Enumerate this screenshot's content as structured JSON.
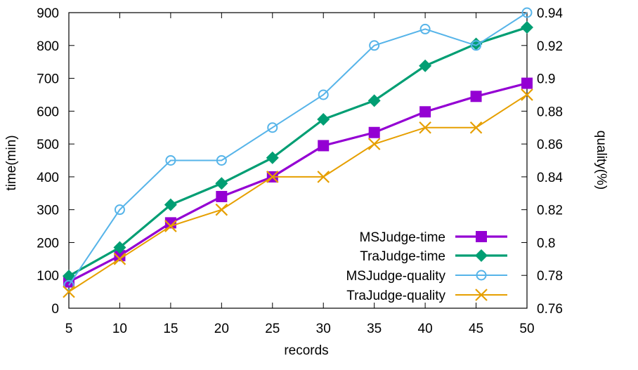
{
  "chart_data": {
    "type": "line",
    "x": [
      5,
      10,
      15,
      20,
      25,
      30,
      35,
      40,
      45,
      50
    ],
    "xlabel": "records",
    "ylabel": "time(min)",
    "y2label": "quality(%)",
    "xlim": [
      5,
      50
    ],
    "ylim": [
      0,
      900
    ],
    "y2lim": [
      0.76,
      0.94
    ],
    "xticks": [
      "5",
      "10",
      "15",
      "20",
      "25",
      "30",
      "35",
      "40",
      "45",
      "50"
    ],
    "yticks": [
      "0",
      "100",
      "200",
      "300",
      "400",
      "500",
      "600",
      "700",
      "800",
      "900"
    ],
    "y2ticks": [
      "0.76",
      "0.78",
      "0.8",
      "0.82",
      "0.84",
      "0.86",
      "0.88",
      "0.9",
      "0.92",
      "0.94"
    ],
    "grid": false,
    "legend_position": "bottom-right",
    "series": [
      {
        "name": "MSJudge-time",
        "axis": "left",
        "marker": "square",
        "color": "#9400d3",
        "values": [
          80,
          160,
          260,
          340,
          400,
          495,
          535,
          598,
          645,
          685
        ]
      },
      {
        "name": "TraJudge-time",
        "axis": "left",
        "marker": "diamond",
        "color": "#009e73",
        "values": [
          98,
          185,
          315,
          380,
          458,
          575,
          632,
          738,
          805,
          855
        ]
      },
      {
        "name": "MSJudge-quality",
        "axis": "right",
        "marker": "circle-open",
        "color": "#56b4e9",
        "values": [
          0.774,
          0.82,
          0.85,
          0.85,
          0.87,
          0.89,
          0.92,
          0.93,
          0.92,
          0.94
        ]
      },
      {
        "name": "TraJudge-quality",
        "axis": "right",
        "marker": "x",
        "color": "#e69f00",
        "values": [
          0.77,
          0.79,
          0.81,
          0.82,
          0.84,
          0.84,
          0.86,
          0.87,
          0.87,
          0.89
        ]
      }
    ]
  }
}
